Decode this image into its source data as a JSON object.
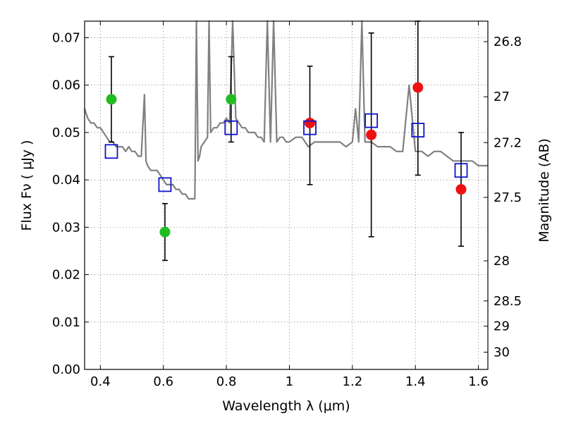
{
  "chart_data": {
    "type": "scatter",
    "title": "",
    "xlabel": "Wavelength  λ (μm)",
    "ylabel": "Flux  Fν  ( μJy )",
    "y2label": "Magnitude (AB)",
    "xlim": [
      0.35,
      1.63
    ],
    "ylim": [
      0.0,
      0.0735
    ],
    "grid": true,
    "x_ticks": [
      {
        "value": 0.4,
        "label": "0.4"
      },
      {
        "value": 0.6,
        "label": "0.6"
      },
      {
        "value": 0.8,
        "label": "0.8"
      },
      {
        "value": 1.0,
        "label": "1"
      },
      {
        "value": 1.2,
        "label": "1.2"
      },
      {
        "value": 1.4,
        "label": "1.4"
      },
      {
        "value": 1.6,
        "label": "1.6"
      }
    ],
    "y_ticks": [
      {
        "value": 0.0,
        "label": "0.00"
      },
      {
        "value": 0.01,
        "label": "0.01"
      },
      {
        "value": 0.02,
        "label": "0.02"
      },
      {
        "value": 0.03,
        "label": "0.03"
      },
      {
        "value": 0.04,
        "label": "0.04"
      },
      {
        "value": 0.05,
        "label": "0.05"
      },
      {
        "value": 0.06,
        "label": "0.06"
      },
      {
        "value": 0.07,
        "label": "0.07"
      }
    ],
    "y2_ticks": [
      {
        "value": 26.8,
        "label": "26.8"
      },
      {
        "value": 27.0,
        "label": "27"
      },
      {
        "value": 27.2,
        "label": "27.2"
      },
      {
        "value": 27.5,
        "label": "27.5"
      },
      {
        "value": 28.0,
        "label": "28"
      },
      {
        "value": 28.5,
        "label": "28.5"
      },
      {
        "value": 29.0,
        "label": "29"
      },
      {
        "value": 30.0,
        "label": "30"
      }
    ],
    "colors": {
      "spectrum": "#808080",
      "detected": "#22bb22",
      "upper_limit": "#ee1111",
      "model": "#1111cc",
      "errorbar": "#000000"
    },
    "series": [
      {
        "kind": "line",
        "x": [
          0.35,
          0.36,
          0.37,
          0.38,
          0.39,
          0.4,
          0.41,
          0.42,
          0.43,
          0.44,
          0.45,
          0.46,
          0.47,
          0.48,
          0.49,
          0.5,
          0.51,
          0.52,
          0.53,
          0.54,
          0.545,
          0.55,
          0.56,
          0.57,
          0.58,
          0.59,
          0.6,
          0.61,
          0.62,
          0.63,
          0.64,
          0.65,
          0.66,
          0.67,
          0.68,
          0.69,
          0.7,
          0.705,
          0.71,
          0.715,
          0.72,
          0.73,
          0.74,
          0.745,
          0.75,
          0.76,
          0.77,
          0.78,
          0.79,
          0.8,
          0.81,
          0.82,
          0.83,
          0.84,
          0.85,
          0.86,
          0.87,
          0.88,
          0.89,
          0.9,
          0.91,
          0.92,
          0.93,
          0.94,
          0.95,
          0.96,
          0.97,
          0.98,
          0.99,
          1.0,
          1.02,
          1.04,
          1.06,
          1.08,
          1.1,
          1.12,
          1.14,
          1.16,
          1.18,
          1.2,
          1.21,
          1.22,
          1.23,
          1.24,
          1.26,
          1.28,
          1.3,
          1.32,
          1.34,
          1.36,
          1.38,
          1.4,
          1.42,
          1.44,
          1.46,
          1.48,
          1.5,
          1.52,
          1.54,
          1.56,
          1.58,
          1.6,
          1.63
        ],
        "y": [
          0.055,
          0.053,
          0.052,
          0.052,
          0.051,
          0.051,
          0.05,
          0.049,
          0.048,
          0.048,
          0.047,
          0.047,
          0.047,
          0.046,
          0.047,
          0.046,
          0.046,
          0.045,
          0.045,
          0.058,
          0.044,
          0.043,
          0.042,
          0.042,
          0.042,
          0.041,
          0.04,
          0.039,
          0.039,
          0.039,
          0.038,
          0.038,
          0.037,
          0.037,
          0.036,
          0.036,
          0.036,
          0.0735,
          0.044,
          0.045,
          0.047,
          0.048,
          0.049,
          0.0735,
          0.05,
          0.051,
          0.051,
          0.052,
          0.052,
          0.053,
          0.052,
          0.0735,
          0.053,
          0.052,
          0.051,
          0.051,
          0.05,
          0.05,
          0.05,
          0.049,
          0.049,
          0.048,
          0.0735,
          0.048,
          0.0735,
          0.048,
          0.049,
          0.049,
          0.048,
          0.048,
          0.049,
          0.049,
          0.047,
          0.048,
          0.048,
          0.048,
          0.048,
          0.048,
          0.047,
          0.048,
          0.055,
          0.048,
          0.0735,
          0.048,
          0.048,
          0.047,
          0.047,
          0.047,
          0.046,
          0.046,
          0.06,
          0.046,
          0.046,
          0.045,
          0.046,
          0.046,
          0.045,
          0.044,
          0.044,
          0.044,
          0.044,
          0.043,
          0.043
        ]
      },
      {
        "kind": "errorbar",
        "x": [
          0.435,
          0.605,
          0.815,
          1.065,
          1.26,
          1.408,
          1.545
        ],
        "ylow": [
          0.048,
          0.023,
          0.048,
          0.039,
          0.028,
          0.041,
          0.026
        ],
        "yhigh": [
          0.066,
          0.035,
          0.066,
          0.064,
          0.071,
          0.0735,
          0.05
        ]
      },
      {
        "kind": "points",
        "marker": "circle",
        "role": "detected",
        "x": [
          0.435,
          0.605,
          0.815
        ],
        "y": [
          0.057,
          0.029,
          0.057
        ]
      },
      {
        "kind": "points",
        "marker": "circle",
        "role": "upper_limit",
        "x": [
          1.065,
          1.26,
          1.408,
          1.545
        ],
        "y": [
          0.052,
          0.0495,
          0.0595,
          0.038
        ]
      },
      {
        "kind": "points",
        "marker": "square-open",
        "role": "model",
        "x": [
          0.435,
          0.605,
          0.815,
          1.065,
          1.26,
          1.408,
          1.545
        ],
        "y": [
          0.046,
          0.039,
          0.051,
          0.051,
          0.0525,
          0.0505,
          0.042
        ]
      }
    ]
  }
}
